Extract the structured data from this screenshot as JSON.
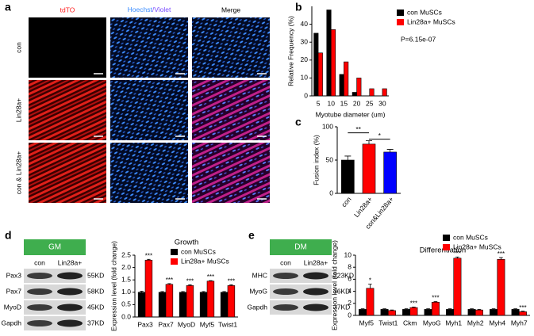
{
  "panel_letters": [
    "a",
    "b",
    "c",
    "d",
    "e"
  ],
  "image_columns": [
    "tdTO",
    "Hoechst",
    "/Violet",
    "Merge"
  ],
  "image_rows": [
    "con",
    "Lin28a+",
    "con & Lin28a+"
  ],
  "blots": [
    {
      "condition": "GM",
      "lanes": [
        "con",
        "Lin28a+"
      ],
      "rows": [
        {
          "protein": "Pax3",
          "size": "55KD"
        },
        {
          "protein": "Pax7",
          "size": "58KD"
        },
        {
          "protein": "MyoD",
          "size": "45KD"
        },
        {
          "protein": "Gapdh",
          "size": "37KD"
        }
      ]
    },
    {
      "condition": "DM",
      "lanes": [
        "con",
        "Lin28a+"
      ],
      "rows": [
        {
          "protein": "MHC",
          "size": "223KD"
        },
        {
          "protein": "MyoG",
          "size": "36KD"
        },
        {
          "protein": "Gapdh",
          "size": "37KD"
        }
      ]
    }
  ],
  "chart_data": [
    {
      "type": "bar",
      "xlabel": "Myotube diameter (um)",
      "ylabel": "Relative Frequency (%)",
      "categories": [
        "5",
        "10",
        "15",
        "20",
        "25",
        "30"
      ],
      "series": [
        {
          "name": "con MuSCs",
          "color": "#000000",
          "values": [
            35,
            48,
            12,
            2,
            0,
            0
          ]
        },
        {
          "name": "Lin28a+ MuSCs",
          "color": "#ff0000",
          "values": [
            24,
            37,
            19,
            10,
            4,
            4
          ]
        }
      ],
      "ylim": [
        0,
        50
      ],
      "yticks": [
        0,
        10,
        20,
        30,
        40
      ],
      "legend": "upper right",
      "annotations": [
        "P=6.15e-07"
      ]
    },
    {
      "type": "bar",
      "ylabel": "Fusion index (%)",
      "categories": [
        "con",
        "Lin28a+",
        "con&Lin28a+"
      ],
      "values": [
        50,
        74,
        62
      ],
      "errors": [
        6,
        5,
        4
      ],
      "colors": [
        "#000000",
        "#ff0000",
        "#0000ff"
      ],
      "ylim": [
        0,
        100
      ],
      "yticks": [
        0,
        50,
        100
      ],
      "annotations": [
        "**",
        "*"
      ]
    },
    {
      "type": "bar",
      "title": "Growth",
      "ylabel": "Expression level (fold change)",
      "categories": [
        "Pax3",
        "Pax7",
        "MyoD",
        "Myf5",
        "Twist1"
      ],
      "series": [
        {
          "name": "con MuSCs",
          "color": "#000000",
          "values": [
            1,
            1,
            1,
            1,
            1
          ],
          "errors": [
            0.04,
            0.03,
            0.03,
            0.03,
            0.03
          ],
          "significance": [
            null,
            null,
            null,
            null,
            null
          ]
        },
        {
          "name": "Lin28a+ MuSCs",
          "color": "#ff0000",
          "values": [
            2.3,
            1.32,
            1.27,
            1.45,
            1.27
          ],
          "errors": [
            0.03,
            0.03,
            0.03,
            0.02,
            0.03
          ],
          "significance": [
            "***",
            "***",
            "***",
            "***",
            "***"
          ]
        }
      ],
      "ylim": [
        0,
        2.5
      ],
      "yticks": [
        {
          "value": 0,
          "label": "0.0"
        },
        0.5,
        {
          "value": 1,
          "label": "1.0"
        },
        1.5,
        {
          "value": 2,
          "label": "2.0"
        },
        2.5
      ],
      "legend": "upper right"
    },
    {
      "type": "bar",
      "title": "Differentiation",
      "ylabel": "Expression level (fold change)",
      "categories": [
        "Myf5",
        "Twist1",
        "Ckm",
        "MyoG",
        "Myh1",
        "Myh2",
        "Myh4",
        "Myh7"
      ],
      "series": [
        {
          "name": "con MuSCs",
          "color": "#000000",
          "values": [
            1,
            1,
            1,
            1,
            1,
            1,
            1,
            1
          ],
          "errors": [
            0.1,
            0.1,
            0.1,
            0.1,
            0.1,
            0.1,
            0.1,
            0.1
          ],
          "significance": [
            null,
            null,
            null,
            null,
            null,
            null,
            null,
            null
          ]
        },
        {
          "name": "Lin28a+ MuSCs",
          "color": "#ff0000",
          "values": [
            4.5,
            0.8,
            1.3,
            2.2,
            9.5,
            0.9,
            9.3,
            0.6
          ],
          "errors": [
            0.7,
            0.1,
            0.1,
            0.1,
            0.2,
            0.1,
            0.3,
            0.1
          ],
          "significance": [
            "*",
            null,
            "***",
            "***",
            "***",
            null,
            "***",
            "***"
          ]
        }
      ],
      "ylim": [
        0,
        10
      ],
      "yticks": [
        0,
        2,
        4,
        6,
        8,
        10
      ],
      "legend": "upper right"
    }
  ]
}
